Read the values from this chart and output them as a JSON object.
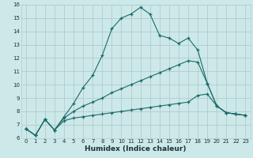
{
  "xlabel": "Humidex (Indice chaleur)",
  "bg_color": "#cde8e8",
  "grid_color": "#b0cccc",
  "line_color": "#1a6b6b",
  "xlim": [
    -0.5,
    23.5
  ],
  "ylim": [
    6,
    16
  ],
  "xticks": [
    0,
    1,
    2,
    3,
    4,
    5,
    6,
    7,
    8,
    9,
    10,
    11,
    12,
    13,
    14,
    15,
    16,
    17,
    18,
    19,
    20,
    21,
    22,
    23
  ],
  "yticks": [
    6,
    7,
    8,
    9,
    10,
    11,
    12,
    13,
    14,
    15,
    16
  ],
  "line1_x": [
    0,
    1,
    2,
    3,
    4,
    5,
    6,
    7,
    8,
    9,
    10,
    11,
    12,
    13,
    14,
    15,
    16,
    17,
    18,
    19,
    20,
    21,
    22,
    23
  ],
  "line1_y": [
    6.7,
    6.2,
    7.4,
    6.6,
    7.6,
    8.6,
    9.8,
    10.7,
    12.2,
    14.2,
    15.0,
    15.3,
    15.8,
    15.3,
    13.7,
    13.5,
    13.1,
    13.5,
    12.6,
    10.1,
    8.4,
    7.9,
    7.8,
    7.7
  ],
  "line2_x": [
    0,
    1,
    2,
    3,
    4,
    5,
    6,
    7,
    8,
    9,
    10,
    11,
    12,
    13,
    14,
    15,
    16,
    17,
    18,
    19,
    20,
    21,
    22,
    23
  ],
  "line2_y": [
    6.7,
    6.2,
    7.4,
    6.6,
    7.5,
    8.0,
    8.4,
    8.7,
    9.0,
    9.4,
    9.7,
    10.0,
    10.3,
    10.6,
    10.9,
    11.2,
    11.5,
    11.8,
    11.7,
    10.1,
    8.4,
    7.9,
    7.8,
    7.7
  ],
  "line3_x": [
    0,
    1,
    2,
    3,
    4,
    5,
    6,
    7,
    8,
    9,
    10,
    11,
    12,
    13,
    14,
    15,
    16,
    17,
    18,
    19,
    20,
    21,
    22,
    23
  ],
  "line3_y": [
    6.7,
    6.2,
    7.4,
    6.6,
    7.3,
    7.5,
    7.6,
    7.7,
    7.8,
    7.9,
    8.0,
    8.1,
    8.2,
    8.3,
    8.4,
    8.5,
    8.6,
    8.7,
    9.2,
    9.3,
    8.4,
    7.9,
    7.8,
    7.7
  ],
  "marker_size": 2.5,
  "lw": 0.8,
  "xlabel_size": 6.5,
  "tick_size": 5.0
}
